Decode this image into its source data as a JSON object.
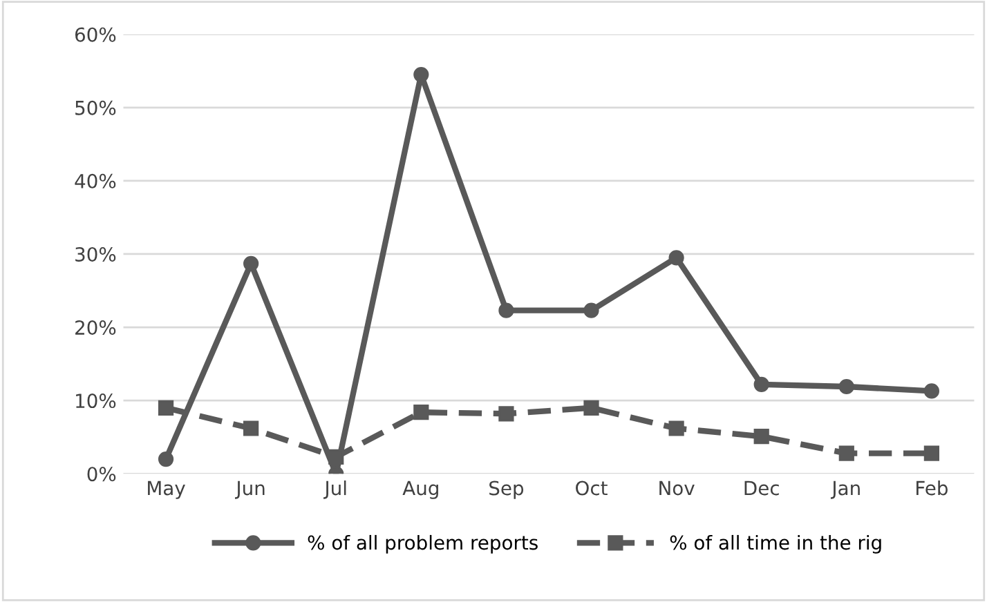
{
  "chart_data": {
    "type": "line",
    "categories": [
      "May",
      "Jun",
      "Jul",
      "Aug",
      "Sep",
      "Oct",
      "Nov",
      "Dec",
      "Jan",
      "Feb"
    ],
    "series": [
      {
        "name": "% of all problem reports",
        "color": "#595959",
        "marker": "circle",
        "line_style": "solid",
        "values": [
          2,
          28.7,
          0,
          54.5,
          22.3,
          22.3,
          29.5,
          12.2,
          11.9,
          11.3
        ]
      },
      {
        "name": "% of all time in the rig",
        "color": "#595959",
        "marker": "square",
        "line_style": "dashed",
        "values": [
          9,
          6.2,
          2.3,
          8.4,
          8.2,
          9,
          6.2,
          5.1,
          2.8,
          2.8
        ]
      }
    ],
    "ylim": [
      0,
      60
    ],
    "yticks": [
      {
        "value": 0,
        "label": "0%"
      },
      {
        "value": 10,
        "label": "10%"
      },
      {
        "value": 20,
        "label": "20%"
      },
      {
        "value": 30,
        "label": "30%"
      },
      {
        "value": 40,
        "label": "40%"
      },
      {
        "value": 50,
        "label": "50%"
      },
      {
        "value": 60,
        "label": "60%"
      }
    ],
    "grid": "y",
    "legend": "bottom"
  }
}
